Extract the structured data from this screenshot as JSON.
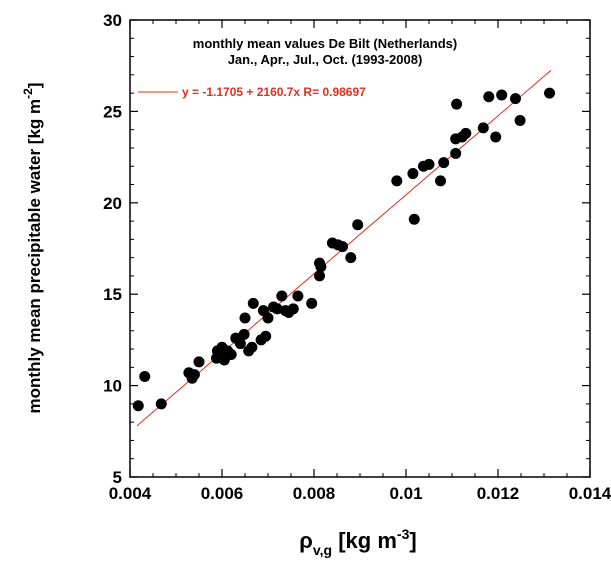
{
  "chart_data": {
    "type": "scatter",
    "title_lines": [
      "monthly mean values De Bilt (Netherlands)",
      "Jan., Apr., Jul., Oct. (1993-2008)"
    ],
    "fit_label": "y = -1.1705 + 2160.7x   R= 0.98697",
    "fit": {
      "intercept": -1.1705,
      "slope": 2160.7,
      "x_range": [
        0.00415,
        0.01315
      ]
    },
    "xlabel": {
      "base": "ρ",
      "sub": "v,g",
      "unit_prefix": "[kg m",
      "unit_sup": "-3",
      "unit_suffix": "]"
    },
    "ylabel": {
      "text": "monthly mean precipitable water [kg m",
      "sup": "-2",
      "suffix": "]"
    },
    "xlim": [
      0.004,
      0.014
    ],
    "ylim": [
      5,
      30
    ],
    "xticks": [
      0.004,
      0.006,
      0.008,
      0.01,
      0.012,
      0.014
    ],
    "xtick_labels": [
      "0.004",
      "0.006",
      "0.008",
      "0.01",
      "0.012",
      "0.014"
    ],
    "yticks": [
      5,
      10,
      15,
      20,
      25,
      30
    ],
    "ytick_labels": [
      "5",
      "10",
      "15",
      "20",
      "25",
      "30"
    ],
    "grid": false,
    "colors": {
      "points": "#000000",
      "fit_line": "#e03020",
      "fit_text": "#e03020"
    },
    "points": [
      [
        0.00418,
        8.9
      ],
      [
        0.00432,
        10.5
      ],
      [
        0.00468,
        9.0
      ],
      [
        0.00528,
        10.7
      ],
      [
        0.00535,
        10.4
      ],
      [
        0.0054,
        10.6
      ],
      [
        0.0055,
        11.3
      ],
      [
        0.00588,
        11.5
      ],
      [
        0.0059,
        11.9
      ],
      [
        0.00595,
        11.7
      ],
      [
        0.006,
        12.1
      ],
      [
        0.00605,
        11.4
      ],
      [
        0.00608,
        11.6
      ],
      [
        0.00612,
        11.9
      ],
      [
        0.0062,
        11.7
      ],
      [
        0.0063,
        12.6
      ],
      [
        0.0064,
        12.3
      ],
      [
        0.00648,
        12.8
      ],
      [
        0.0065,
        13.7
      ],
      [
        0.00658,
        11.9
      ],
      [
        0.00665,
        12.1
      ],
      [
        0.00668,
        14.5
      ],
      [
        0.00685,
        12.5
      ],
      [
        0.0069,
        14.1
      ],
      [
        0.00695,
        12.7
      ],
      [
        0.007,
        13.7
      ],
      [
        0.00712,
        14.3
      ],
      [
        0.0072,
        14.2
      ],
      [
        0.0073,
        14.9
      ],
      [
        0.00738,
        14.1
      ],
      [
        0.00745,
        14.0
      ],
      [
        0.00755,
        14.2
      ],
      [
        0.00765,
        14.9
      ],
      [
        0.00795,
        14.5
      ],
      [
        0.00812,
        16.0
      ],
      [
        0.00815,
        16.5
      ],
      [
        0.00812,
        16.7
      ],
      [
        0.0084,
        17.8
      ],
      [
        0.00852,
        17.7
      ],
      [
        0.00862,
        17.6
      ],
      [
        0.0088,
        17.0
      ],
      [
        0.00895,
        18.8
      ],
      [
        0.0098,
        21.2
      ],
      [
        0.01015,
        21.6
      ],
      [
        0.01018,
        19.1
      ],
      [
        0.01038,
        22.0
      ],
      [
        0.0105,
        22.1
      ],
      [
        0.01075,
        21.2
      ],
      [
        0.01082,
        22.2
      ],
      [
        0.01108,
        22.7
      ],
      [
        0.01108,
        23.5
      ],
      [
        0.0111,
        25.4
      ],
      [
        0.01122,
        23.6
      ],
      [
        0.0113,
        23.8
      ],
      [
        0.01168,
        24.1
      ],
      [
        0.0118,
        25.8
      ],
      [
        0.01195,
        23.6
      ],
      [
        0.01208,
        25.9
      ],
      [
        0.01238,
        25.7
      ],
      [
        0.01248,
        24.5
      ],
      [
        0.01312,
        26.0
      ]
    ]
  }
}
